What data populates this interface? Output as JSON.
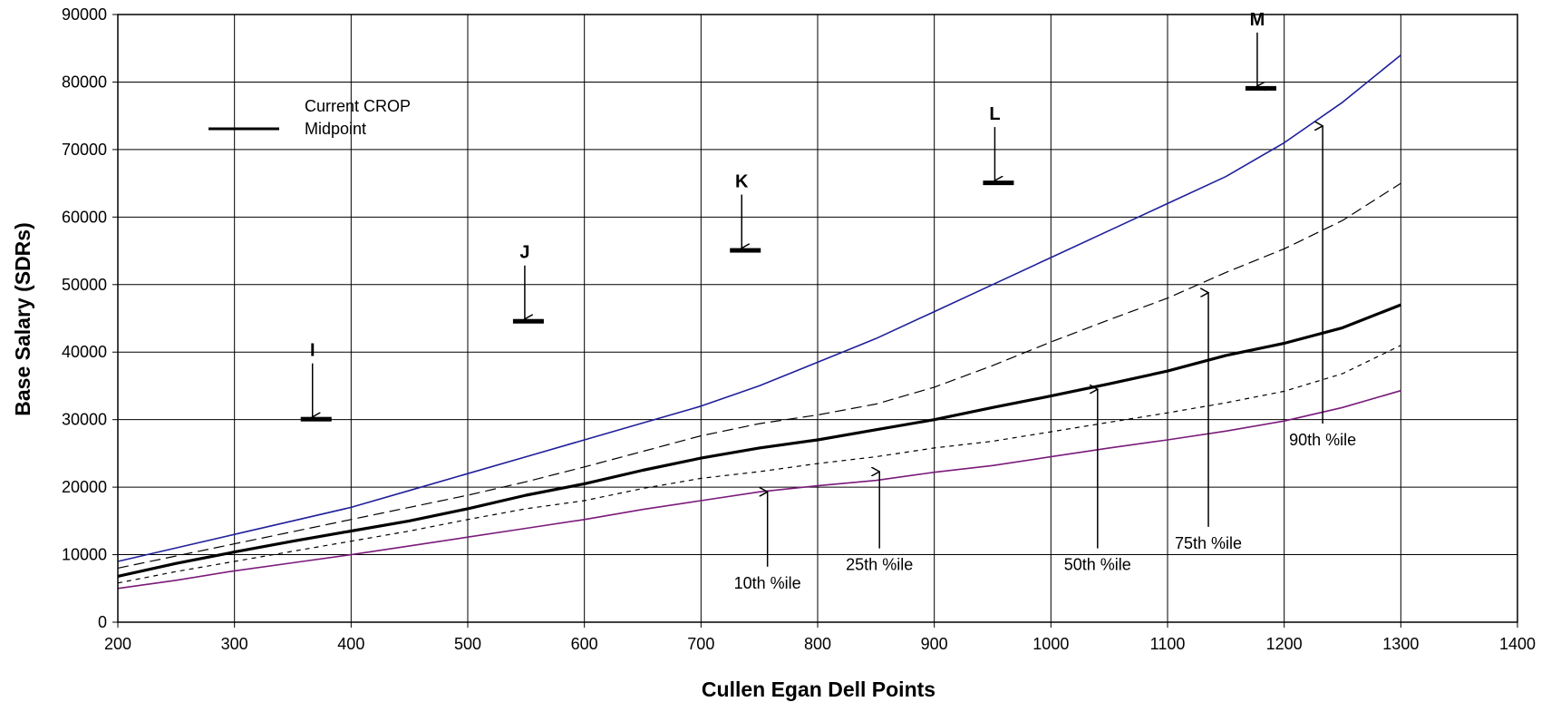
{
  "chart_data": {
    "type": "line",
    "xlabel": "Cullen Egan Dell Points",
    "ylabel": "Base Salary (SDRs)",
    "xlim": [
      200,
      1400
    ],
    "ylim": [
      0,
      90000
    ],
    "xticks": [
      200,
      300,
      400,
      500,
      600,
      700,
      800,
      900,
      1000,
      1100,
      1200,
      1300,
      1400
    ],
    "yticks": [
      0,
      10000,
      20000,
      30000,
      40000,
      50000,
      60000,
      70000,
      80000,
      90000
    ],
    "grid": true,
    "legend": {
      "placement": "top-left",
      "entries": [
        {
          "label_lines": [
            "Current CROP",
            "Midpoint"
          ],
          "style": "thick-black"
        }
      ]
    },
    "series": [
      {
        "key": "p90",
        "style": "solid",
        "color": "#1f1f9a",
        "x": [
          200,
          250,
          300,
          350,
          400,
          450,
          500,
          550,
          600,
          650,
          700,
          750,
          800,
          850,
          900,
          950,
          1000,
          1050,
          1100,
          1150,
          1200,
          1250,
          1300
        ],
        "values": [
          9000,
          11000,
          13000,
          15000,
          17000,
          19500,
          22000,
          24500,
          27000,
          29500,
          32000,
          35000,
          38500,
          42000,
          46000,
          50000,
          54000,
          58000,
          62000,
          66000,
          71000,
          77000,
          84000
        ]
      },
      {
        "key": "p75",
        "style": "dashed-long",
        "color": "#000000",
        "x": [
          200,
          250,
          300,
          350,
          400,
          450,
          500,
          550,
          600,
          650,
          700,
          750,
          800,
          850,
          900,
          950,
          1000,
          1050,
          1100,
          1150,
          1200,
          1250,
          1300
        ],
        "values": [
          8000,
          9800,
          11600,
          13400,
          15200,
          17000,
          18800,
          20800,
          23000,
          25300,
          27600,
          29400,
          30700,
          32300,
          34800,
          38000,
          41500,
          44800,
          48000,
          51800,
          55300,
          59500,
          65000
        ]
      },
      {
        "key": "midpoint",
        "style": "thick",
        "color": "#000000",
        "x": [
          200,
          250,
          300,
          350,
          400,
          450,
          500,
          550,
          600,
          650,
          700,
          750,
          800,
          850,
          900,
          950,
          1000,
          1050,
          1100,
          1150,
          1200,
          1250,
          1300
        ],
        "values": [
          6800,
          8700,
          10400,
          12000,
          13500,
          15000,
          16800,
          18800,
          20500,
          22500,
          24300,
          25800,
          27000,
          28500,
          30000,
          31800,
          33500,
          35300,
          37200,
          39500,
          41300,
          43600,
          47000
        ]
      },
      {
        "key": "p50",
        "style": "dashed-short",
        "color": "#000000",
        "x": [
          200,
          250,
          300,
          350,
          400,
          450,
          500,
          550,
          600,
          650,
          700,
          750,
          800,
          850,
          900,
          950,
          1000,
          1050,
          1100,
          1150,
          1200,
          1250,
          1300
        ],
        "values": [
          5800,
          7500,
          9000,
          10500,
          12000,
          13500,
          15200,
          16800,
          18000,
          19800,
          21300,
          22300,
          23500,
          24500,
          25800,
          26800,
          28200,
          29600,
          31000,
          32500,
          34200,
          36800,
          41000
        ]
      },
      {
        "key": "p10",
        "style": "solid",
        "color": "#7a1a7a",
        "x": [
          200,
          250,
          300,
          350,
          400,
          450,
          500,
          550,
          600,
          650,
          700,
          750,
          800,
          850,
          900,
          950,
          1000,
          1050,
          1100,
          1150,
          1200,
          1250,
          1300
        ],
        "values": [
          5000,
          6200,
          7600,
          8800,
          10000,
          11300,
          12600,
          13900,
          15200,
          16700,
          18000,
          19300,
          20200,
          21000,
          22200,
          23200,
          24500,
          25800,
          27000,
          28300,
          29800,
          31800,
          34300
        ]
      }
    ],
    "annotations": [
      {
        "text": "10th %ile",
        "arrow_x": 757,
        "arrow_y": 19300,
        "label_x": 757,
        "label_y": 5000
      },
      {
        "text": "25th %ile",
        "arrow_x": 853,
        "arrow_y": 22300,
        "label_x": 853,
        "label_y": 7700
      },
      {
        "text": "50th %ile",
        "arrow_x": 1040,
        "arrow_y": 34500,
        "label_x": 1040,
        "label_y": 7700
      },
      {
        "text": "75th %ile",
        "arrow_x": 1135,
        "arrow_y": 48800,
        "label_x": 1135,
        "label_y": 10900
      },
      {
        "text": "90th %ile",
        "arrow_x": 1233,
        "arrow_y": 73500,
        "label_x": 1233,
        "label_y": 26200
      }
    ],
    "grade_markers": [
      {
        "label": "I",
        "x": 370,
        "y": 30000
      },
      {
        "label": "J",
        "x": 552,
        "y": 44500
      },
      {
        "label": "K",
        "x": 738,
        "y": 55000
      },
      {
        "label": "L",
        "x": 955,
        "y": 65000
      },
      {
        "label": "M",
        "x": 1180,
        "y": 79000
      }
    ]
  }
}
